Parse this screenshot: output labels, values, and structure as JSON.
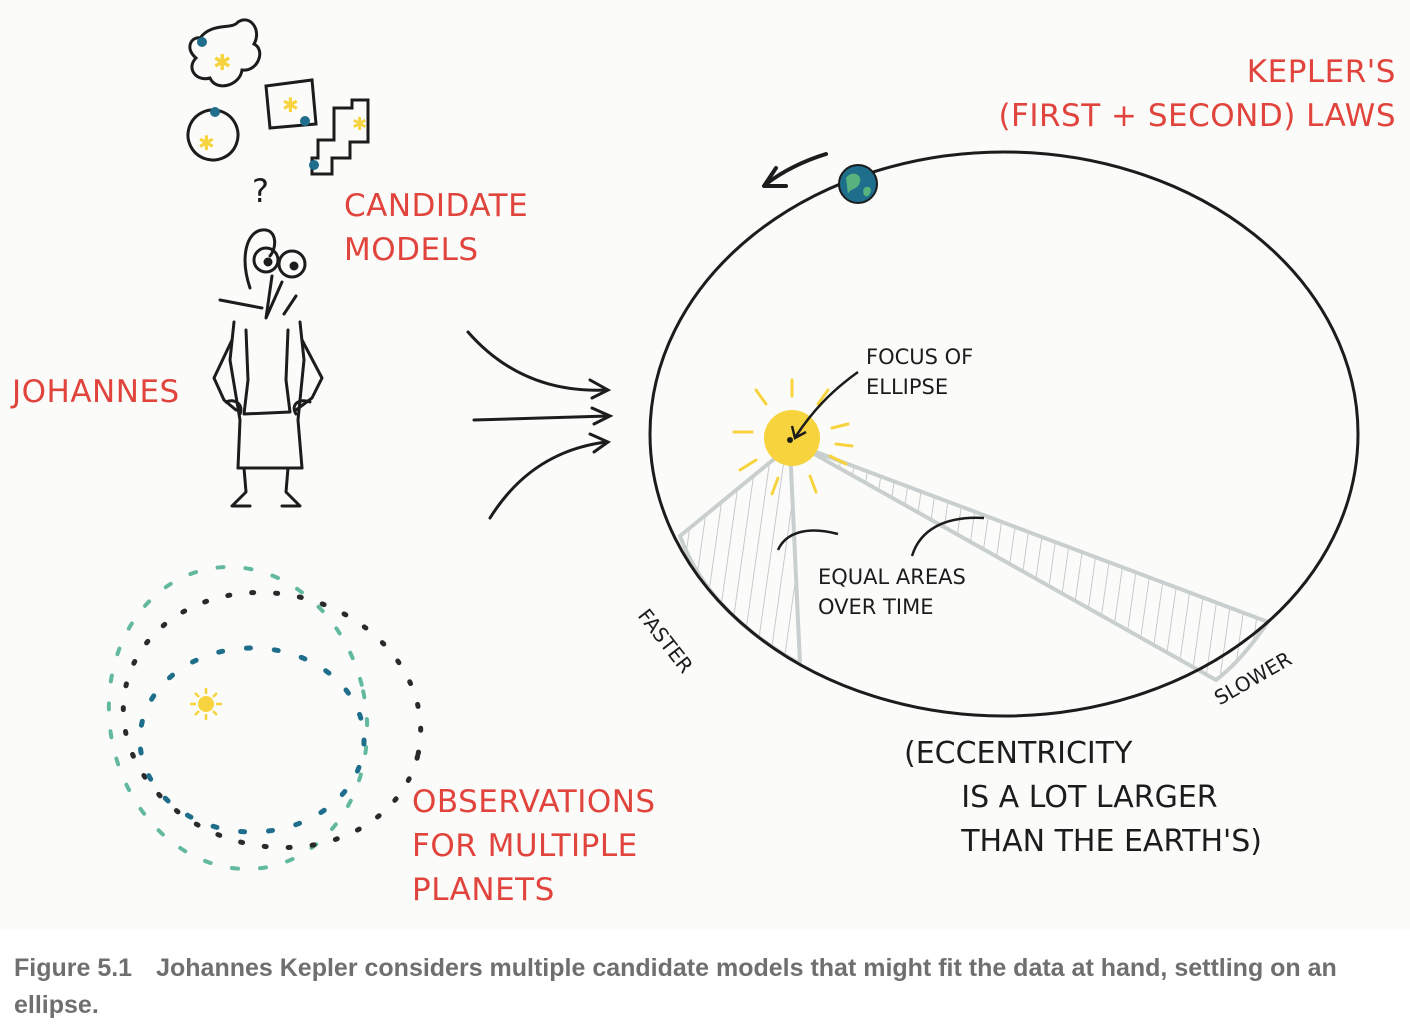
{
  "labels": {
    "candidate_models": "CANDIDATE\nMODELS",
    "johannes": "JOHANNES",
    "observations": "OBSERVATIONS\nFOR MULTIPLE\nPLANETS",
    "keplers_laws": "KEPLER'S\n(FIRST + SECOND) LAWS",
    "focus": "FOCUS OF\nELLIPSE",
    "equal_areas": "EQUAL AREAS\nOVER TIME",
    "faster": "FASTER",
    "slower": "SLOWER",
    "eccentricity": "(ECCENTRICITY\n      IS A LOT LARGER\n      THAN THE EARTH'S)",
    "question_mark": "?"
  },
  "caption": {
    "number": "Figure 5.1",
    "text": "Johannes Kepler considers multiple candidate models that might fit the data at hand, settling on an ellipse."
  },
  "colors": {
    "label_red": "#e0443c",
    "ink": "#1c1c1c",
    "sun": "#f7d33e",
    "planet_blue": "#1f6e8c",
    "orbit_teal": "#63b9a0",
    "area_grey": "#c9cfcf",
    "caption_grey": "#6f6f6f"
  },
  "icons": [
    "sun-icon",
    "earth-icon",
    "star-icon",
    "direction-arrow-icon"
  ]
}
